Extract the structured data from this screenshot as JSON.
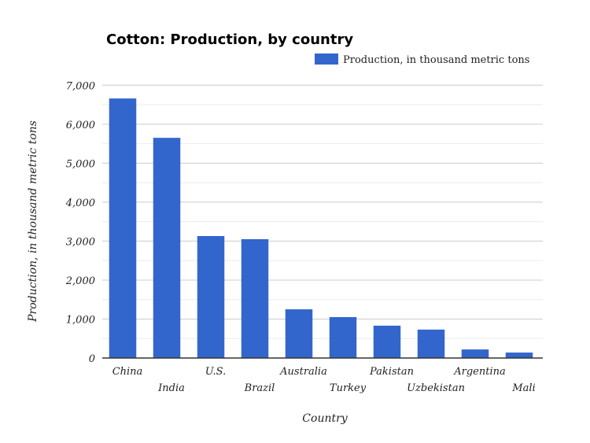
{
  "chart_data": {
    "type": "bar",
    "title": "Cotton: Production, by country",
    "xlabel": "Country",
    "ylabel": "Production, in thousand metric tons",
    "categories": [
      "China",
      "India",
      "U.S.",
      "Brazil",
      "Australia",
      "Turkey",
      "Pakistan",
      "Uzbekistan",
      "Argentina",
      "Mali"
    ],
    "series": [
      {
        "name": "Production, in thousand metric tons",
        "values": [
          6660,
          5650,
          3130,
          3050,
          1250,
          1050,
          830,
          730,
          220,
          140
        ]
      }
    ],
    "ylim": [
      0,
      7000
    ],
    "yticks": [
      "0",
      "1,000",
      "2,000",
      "3,000",
      "4,000",
      "5,000",
      "6,000",
      "7,000"
    ],
    "grid": true,
    "legend": "top-right",
    "color": "#3366cc"
  }
}
